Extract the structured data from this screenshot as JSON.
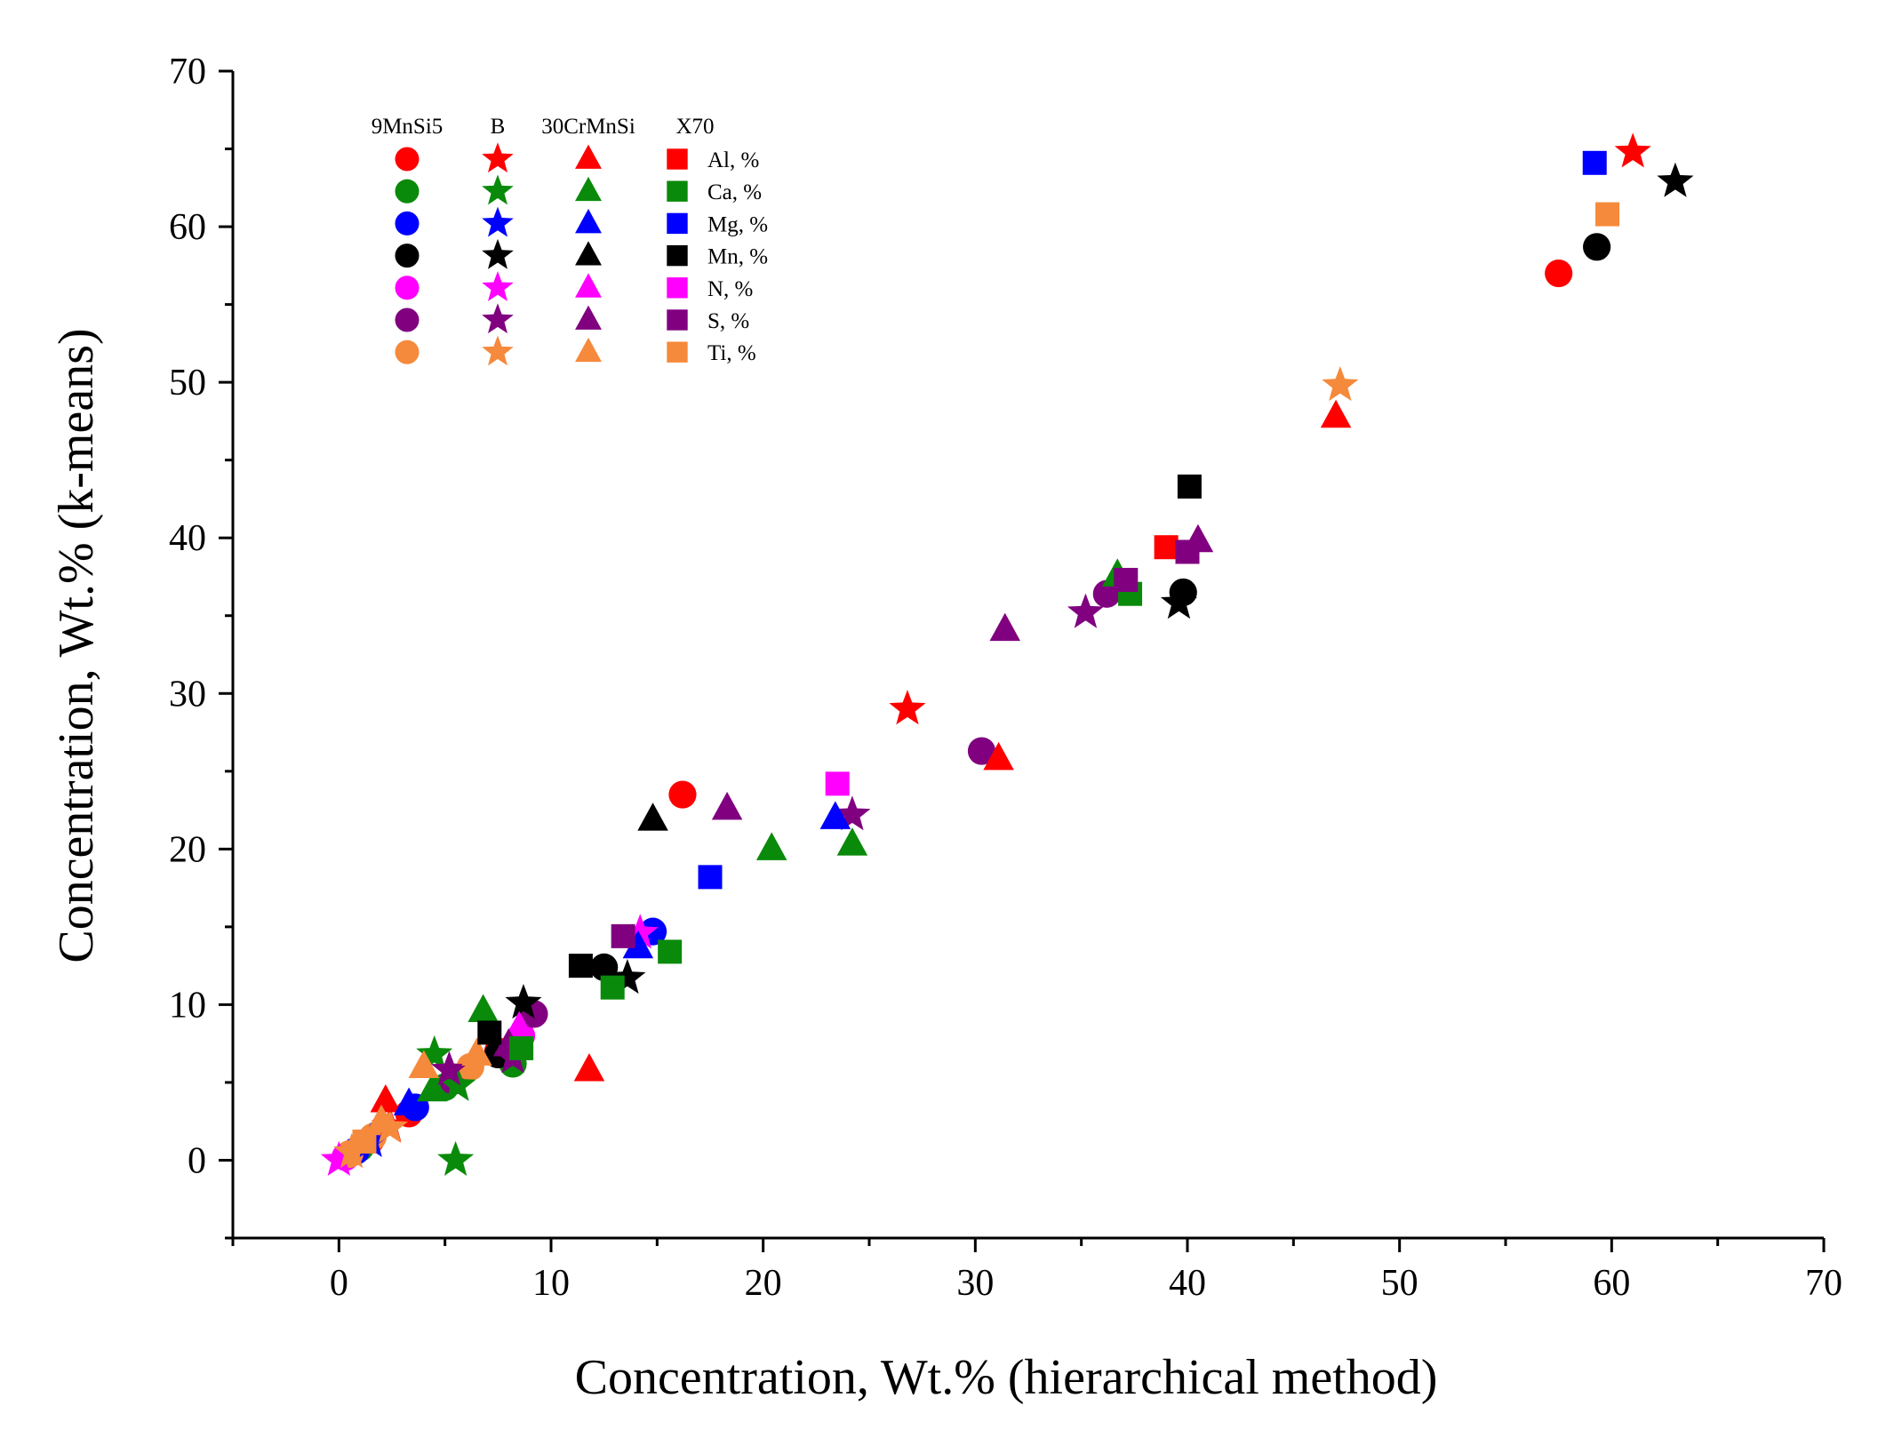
{
  "chart_data": {
    "type": "scatter",
    "title": "",
    "xlabel": "Concentration, Wt.% (hierarchical method)",
    "ylabel": "Concentration, Wt.% (k-means)",
    "xlim": [
      -5,
      70
    ],
    "ylim": [
      -5,
      70
    ],
    "xticks": [
      0,
      10,
      20,
      30,
      40,
      50,
      60,
      70
    ],
    "yticks": [
      0,
      10,
      20,
      30,
      40,
      50,
      60,
      70
    ],
    "grid": false,
    "legend_position": "top-left",
    "steels": [
      {
        "name": "9MnSi5",
        "marker": "circle"
      },
      {
        "name": "B",
        "marker": "star"
      },
      {
        "name": "30CrMnSi",
        "marker": "triangle"
      },
      {
        "name": "X70",
        "marker": "square"
      }
    ],
    "elements": [
      {
        "name": "Al, %",
        "color": "#ff0000"
      },
      {
        "name": "Ca, %",
        "color": "#0a8a0a"
      },
      {
        "name": "Mg, %",
        "color": "#0000ff"
      },
      {
        "name": "Mn, %",
        "color": "#000000"
      },
      {
        "name": "N, %",
        "color": "#ff00ff"
      },
      {
        "name": "S, %",
        "color": "#800080"
      },
      {
        "name": "Ti, %",
        "color": "#f58a3c"
      }
    ],
    "series": [
      {
        "steel": "9MnSi5",
        "element": "Al, %",
        "points": [
          [
            57.5,
            57.0
          ],
          [
            16.2,
            23.5
          ],
          [
            7.5,
            7.0
          ],
          [
            3.3,
            3.0
          ],
          [
            1.5,
            1.3
          ]
        ]
      },
      {
        "steel": "9MnSi5",
        "element": "Ca, %",
        "points": [
          [
            8.2,
            6.2
          ],
          [
            5.0,
            4.7
          ],
          [
            1.0,
            0.8
          ]
        ]
      },
      {
        "steel": "9MnSi5",
        "element": "Mg, %",
        "points": [
          [
            14.8,
            14.7
          ],
          [
            3.6,
            3.4
          ],
          [
            0.8,
            0.6
          ]
        ]
      },
      {
        "steel": "9MnSi5",
        "element": "Mn, %",
        "points": [
          [
            59.3,
            58.7
          ],
          [
            39.8,
            36.5
          ],
          [
            12.5,
            12.4
          ],
          [
            7.5,
            6.8
          ]
        ]
      },
      {
        "steel": "9MnSi5",
        "element": "N, %",
        "points": [
          [
            8.6,
            8.0
          ],
          [
            0.3,
            0.2
          ]
        ]
      },
      {
        "steel": "9MnSi5",
        "element": "S, %",
        "points": [
          [
            30.3,
            26.3
          ],
          [
            36.2,
            36.4
          ],
          [
            9.2,
            9.4
          ],
          [
            5.4,
            5.1
          ]
        ]
      },
      {
        "steel": "9MnSi5",
        "element": "Ti, %",
        "points": [
          [
            6.2,
            6.0
          ],
          [
            1.6,
            1.5
          ],
          [
            0.5,
            0.4
          ]
        ]
      },
      {
        "steel": "B",
        "element": "Al, %",
        "points": [
          [
            61.0,
            64.8
          ],
          [
            26.8,
            29.0
          ],
          [
            2.4,
            2.2
          ]
        ]
      },
      {
        "steel": "B",
        "element": "Ca, %",
        "points": [
          [
            5.5,
            0.0
          ],
          [
            4.5,
            6.8
          ],
          [
            5.6,
            4.8
          ]
        ]
      },
      {
        "steel": "B",
        "element": "Mg, %",
        "points": [
          [
            1.5,
            1.2
          ]
        ]
      },
      {
        "steel": "B",
        "element": "Mn, %",
        "points": [
          [
            63.0,
            62.9
          ],
          [
            39.6,
            35.8
          ],
          [
            13.6,
            11.7
          ],
          [
            8.7,
            10.1
          ]
        ]
      },
      {
        "steel": "B",
        "element": "N, %",
        "points": [
          [
            14.2,
            14.6
          ],
          [
            0.0,
            0.0
          ]
        ]
      },
      {
        "steel": "B",
        "element": "S, %",
        "points": [
          [
            35.2,
            35.2
          ],
          [
            24.2,
            22.2
          ],
          [
            5.2,
            5.8
          ],
          [
            8.2,
            6.6
          ]
        ]
      },
      {
        "steel": "B",
        "element": "Ti, %",
        "points": [
          [
            47.2,
            49.8
          ],
          [
            0.6,
            0.5
          ],
          [
            2.4,
            2.1
          ]
        ]
      },
      {
        "steel": "30CrMnSi",
        "element": "Al, %",
        "points": [
          [
            47.0,
            47.8
          ],
          [
            31.1,
            25.8
          ],
          [
            11.8,
            5.8
          ],
          [
            2.2,
            3.8
          ]
        ]
      },
      {
        "steel": "30CrMnSi",
        "element": "Ca, %",
        "points": [
          [
            20.4,
            20.0
          ],
          [
            24.2,
            20.3
          ],
          [
            36.7,
            37.6
          ],
          [
            6.8,
            9.6
          ],
          [
            4.4,
            4.5
          ]
        ]
      },
      {
        "steel": "30CrMnSi",
        "element": "Mg, %",
        "points": [
          [
            23.4,
            22.0
          ],
          [
            14.1,
            13.7
          ],
          [
            3.3,
            3.6
          ]
        ]
      },
      {
        "steel": "30CrMnSi",
        "element": "Mn, %",
        "points": [
          [
            14.8,
            21.9
          ]
        ]
      },
      {
        "steel": "30CrMnSi",
        "element": "N, %",
        "points": [
          [
            8.5,
            8.5
          ]
        ]
      },
      {
        "steel": "30CrMnSi",
        "element": "S, %",
        "points": [
          [
            31.4,
            34.1
          ],
          [
            18.3,
            22.6
          ],
          [
            40.5,
            39.8
          ],
          [
            8.0,
            7.4
          ]
        ]
      },
      {
        "steel": "30CrMnSi",
        "element": "Ti, %",
        "points": [
          [
            4.0,
            6.0
          ],
          [
            6.5,
            6.8
          ],
          [
            2.0,
            2.5
          ]
        ]
      },
      {
        "steel": "X70",
        "element": "Al, %",
        "points": [
          [
            39.0,
            39.4
          ]
        ]
      },
      {
        "steel": "X70",
        "element": "Ca, %",
        "points": [
          [
            15.6,
            13.4
          ],
          [
            12.9,
            11.1
          ],
          [
            37.3,
            36.4
          ],
          [
            8.6,
            7.2
          ]
        ]
      },
      {
        "steel": "X70",
        "element": "Mg, %",
        "points": [
          [
            59.2,
            64.1
          ],
          [
            17.5,
            18.2
          ]
        ]
      },
      {
        "steel": "X70",
        "element": "Mn, %",
        "points": [
          [
            40.1,
            43.3
          ],
          [
            11.4,
            12.5
          ],
          [
            7.1,
            8.2
          ]
        ]
      },
      {
        "steel": "X70",
        "element": "N, %",
        "points": [
          [
            23.5,
            24.2
          ]
        ]
      },
      {
        "steel": "X70",
        "element": "S, %",
        "points": [
          [
            40.0,
            39.1
          ],
          [
            37.1,
            37.3
          ],
          [
            13.4,
            14.4
          ]
        ]
      },
      {
        "steel": "X70",
        "element": "Ti, %",
        "points": [
          [
            59.8,
            60.8
          ],
          [
            1.2,
            1.2
          ]
        ]
      }
    ]
  }
}
